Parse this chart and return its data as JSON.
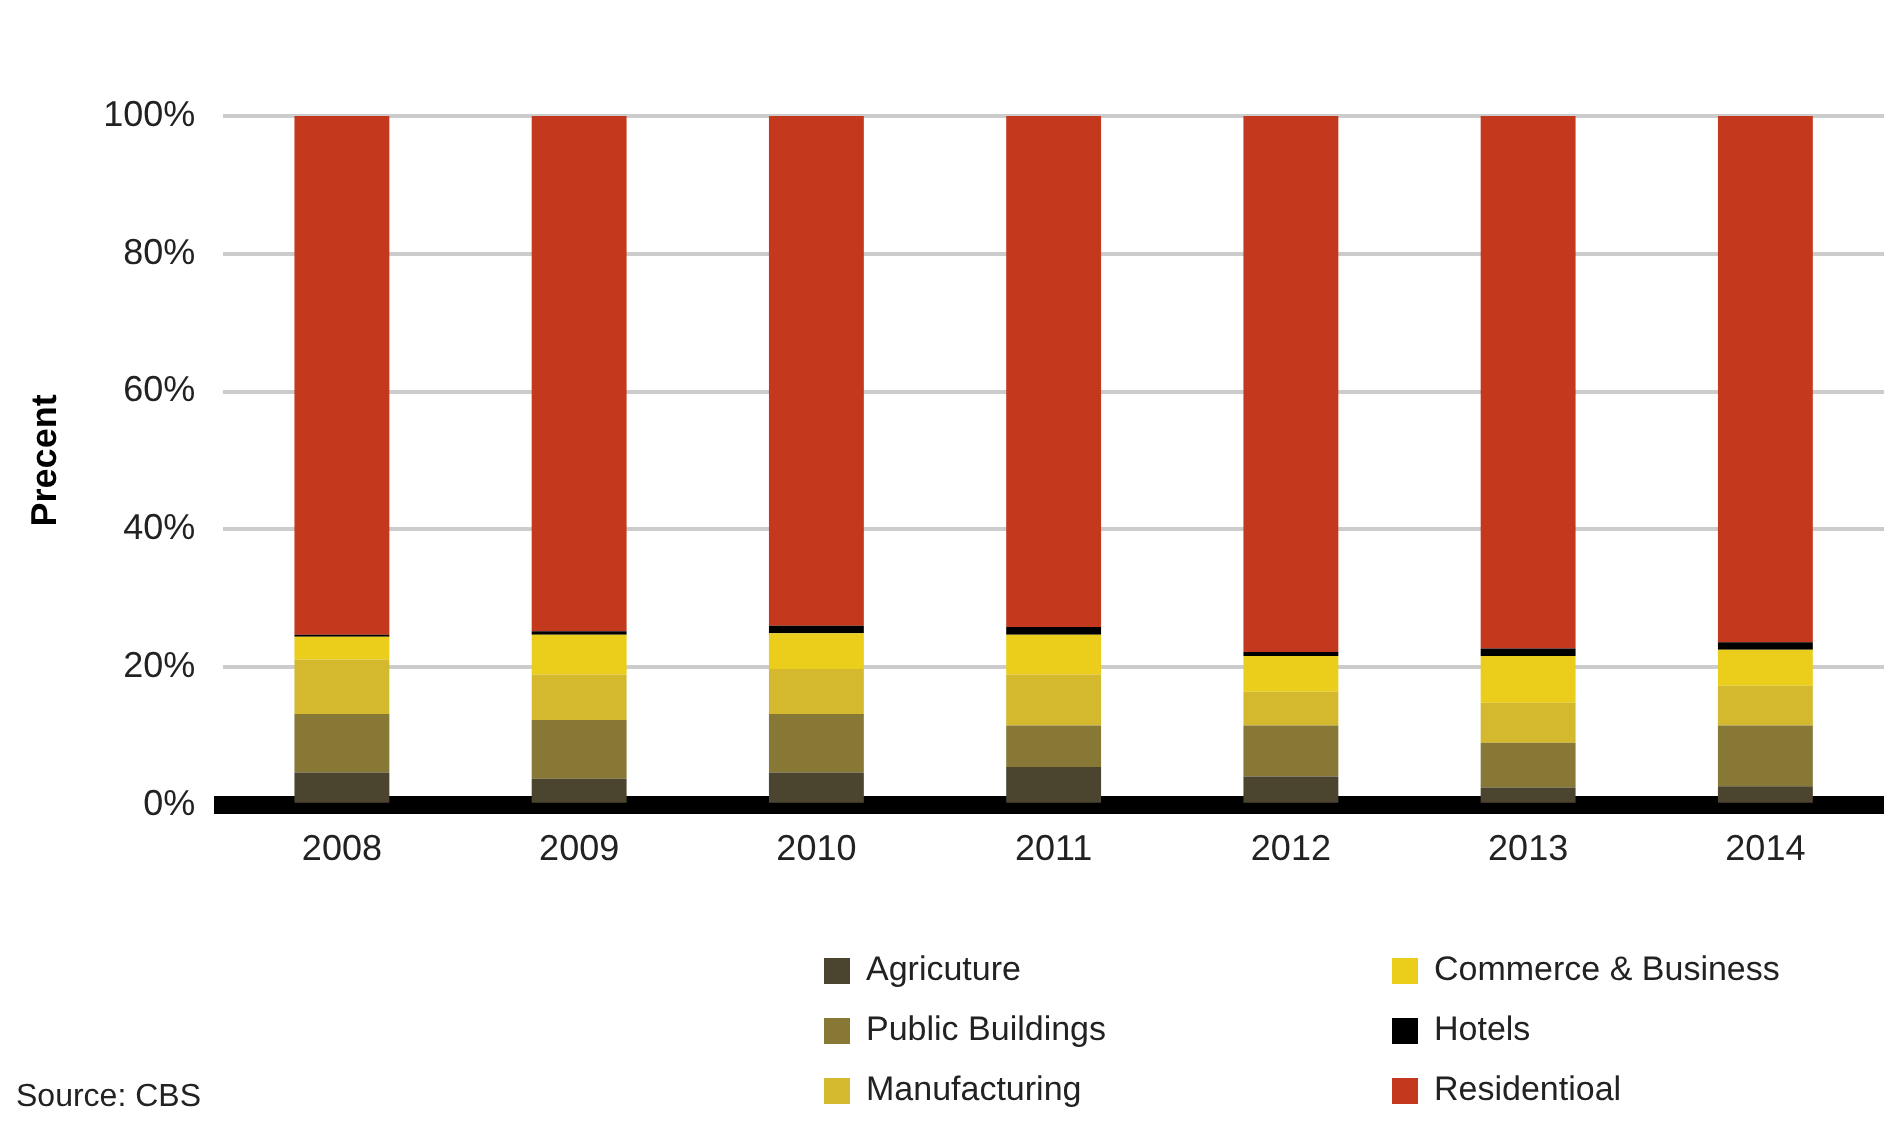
{
  "chart_data": {
    "type": "bar",
    "stacked": true,
    "ylabel": "Precent",
    "categories": [
      "2008",
      "2009",
      "2010",
      "2011",
      "2012",
      "2013",
      "2014"
    ],
    "series": [
      {
        "name": "Agricuture",
        "color": "#4b4530",
        "values": [
          4.7,
          3.8,
          4.7,
          5.5,
          4.1,
          2.5,
          2.7
        ]
      },
      {
        "name": "Public Buildings",
        "color": "#877836",
        "values": [
          8.5,
          8.5,
          8.5,
          6.0,
          7.4,
          6.5,
          8.8
        ]
      },
      {
        "name": "Manufacturing",
        "color": "#d4b82e",
        "values": [
          7.9,
          6.6,
          6.5,
          7.4,
          4.9,
          5.8,
          5.8
        ]
      },
      {
        "name": "Commerce & Business",
        "color": "#ebcd1c",
        "values": [
          3.3,
          5.8,
          5.2,
          5.8,
          5.2,
          6.8,
          5.2
        ]
      },
      {
        "name": "Hotels",
        "color": "#000000",
        "values": [
          0.3,
          0.5,
          1.1,
          1.1,
          0.6,
          1.1,
          1.1
        ]
      },
      {
        "name": "Residentioal",
        "color": "#c4391e",
        "values": [
          75.3,
          74.8,
          74.0,
          74.2,
          77.8,
          77.3,
          76.4
        ]
      }
    ],
    "ylim": [
      0,
      100
    ],
    "yticks": [
      {
        "value": 0,
        "label": "0%"
      },
      {
        "value": 20,
        "label": "20%"
      },
      {
        "value": 40,
        "label": "40%"
      },
      {
        "value": 60,
        "label": "60%"
      },
      {
        "value": 80,
        "label": "80%"
      },
      {
        "value": 100,
        "label": "100%"
      }
    ],
    "grid": "y",
    "legend": "bottom",
    "annotations": [
      "Source: CBS"
    ]
  }
}
